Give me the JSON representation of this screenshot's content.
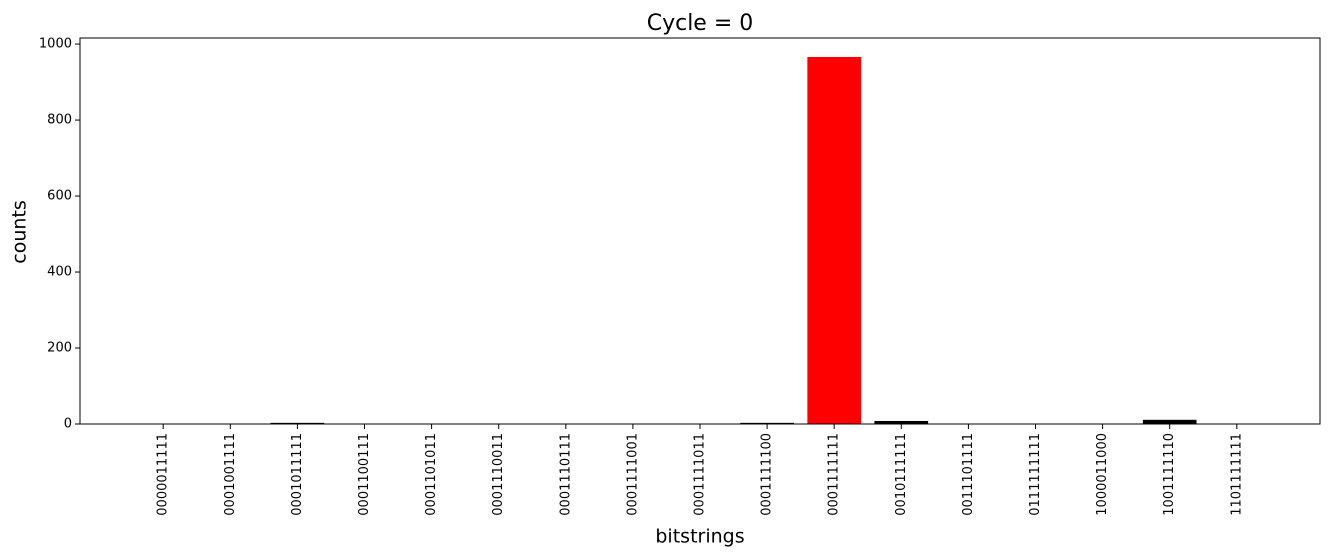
{
  "chart_data": {
    "type": "bar",
    "title": "Cycle = 0",
    "x_label": "bitstrings",
    "y_label": "counts",
    "categories": [
      "0000011111",
      "0001001111",
      "0001011111",
      "0001100111",
      "0001101011",
      "0001110011",
      "0001110111",
      "0001111001",
      "0001111011",
      "0001111100",
      "0001111111",
      "0010111111",
      "0011101111",
      "0111111111",
      "1000011000",
      "1001111110",
      "1101111111"
    ],
    "values": [
      1,
      1,
      3,
      1,
      1,
      1,
      1,
      1,
      1,
      3,
      966,
      8,
      1,
      1,
      1,
      11,
      1
    ],
    "colors": [
      "#000000",
      "#000000",
      "#000000",
      "#000000",
      "#000000",
      "#000000",
      "#000000",
      "#000000",
      "#000000",
      "#000000",
      "#ff0000",
      "#000000",
      "#000000",
      "#000000",
      "#000000",
      "#000000",
      "#000000"
    ],
    "ylim": [
      0,
      1016
    ],
    "yticks": [
      0,
      200,
      400,
      600,
      800,
      1000
    ]
  }
}
